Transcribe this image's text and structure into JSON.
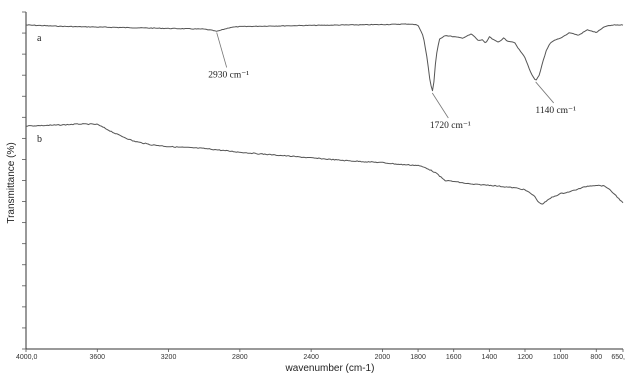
{
  "chart_data": {
    "type": "line",
    "title": "",
    "xlabel": "wavenumber (cm-1)",
    "ylabel": "Transmittance (%)",
    "xlim": [
      4000,
      650
    ],
    "x_reversed": true,
    "grid": false,
    "x_ticks": [
      {
        "value": 4000,
        "label": "4000,0"
      },
      {
        "value": 3600,
        "label": "3600"
      },
      {
        "value": 3200,
        "label": "3200"
      },
      {
        "value": 2800,
        "label": "2800"
      },
      {
        "value": 2400,
        "label": "2400"
      },
      {
        "value": 2000,
        "label": "2000"
      },
      {
        "value": 1800,
        "label": "1800"
      },
      {
        "value": 1600,
        "label": "1600"
      },
      {
        "value": 1400,
        "label": "1400"
      },
      {
        "value": 1200,
        "label": "1200"
      },
      {
        "value": 1000,
        "label": "1000"
      },
      {
        "value": 800,
        "label": "800"
      },
      {
        "value": 650,
        "label": "650,"
      }
    ],
    "series": [
      {
        "name": "a",
        "x": [
          4000,
          3800,
          3600,
          3400,
          3200,
          3000,
          2950,
          2930,
          2900,
          2850,
          2800,
          2600,
          2400,
          2200,
          2000,
          1850,
          1800,
          1770,
          1750,
          1735,
          1720,
          1710,
          1700,
          1680,
          1650,
          1600,
          1550,
          1500,
          1460,
          1440,
          1420,
          1400,
          1380,
          1350,
          1320,
          1300,
          1260,
          1240,
          1200,
          1180,
          1160,
          1140,
          1120,
          1100,
          1080,
          1060,
          1040,
          1000,
          950,
          900,
          850,
          800,
          750,
          700,
          650
        ],
        "y": [
          98.5,
          97.5,
          97.0,
          96.5,
          96.0,
          95.5,
          94.5,
          93.8,
          95.0,
          96.8,
          97.3,
          97.8,
          98.2,
          98.5,
          98.8,
          99.2,
          98.5,
          90.0,
          75.0,
          60.0,
          50.0,
          58.0,
          75.0,
          88.0,
          91.0,
          90.0,
          89.0,
          92.0,
          87.0,
          88.0,
          85.0,
          90.0,
          88.0,
          86.0,
          89.0,
          87.0,
          86.0,
          82.0,
          75.0,
          68.0,
          62.0,
          58.0,
          62.0,
          72.0,
          80.0,
          85.0,
          87.0,
          89.0,
          93.0,
          91.0,
          95.0,
          93.0,
          97.5,
          98.5,
          98.5
        ]
      },
      {
        "name": "b",
        "x": [
          4000,
          3900,
          3800,
          3700,
          3600,
          3500,
          3400,
          3300,
          3200,
          3000,
          2800,
          2600,
          2400,
          2200,
          2000,
          1900,
          1800,
          1750,
          1700,
          1650,
          1600,
          1500,
          1400,
          1300,
          1250,
          1200,
          1150,
          1120,
          1100,
          1080,
          1050,
          1000,
          950,
          900,
          850,
          800,
          750,
          700,
          650
        ],
        "y": [
          66.0,
          66.2,
          66.5,
          67.0,
          66.8,
          62.0,
          58.0,
          56.0,
          55.0,
          54.0,
          52.0,
          50.5,
          49.0,
          47.5,
          46.5,
          45.5,
          45.0,
          43.5,
          41.0,
          37.0,
          36.5,
          35.0,
          34.5,
          33.5,
          33.0,
          32.0,
          29.0,
          25.0,
          24.5,
          26.0,
          28.0,
          30.0,
          31.0,
          32.5,
          34.0,
          34.5,
          34.0,
          30.0,
          25.0
        ]
      }
    ],
    "annotations": [
      {
        "series": "a",
        "x": 2930,
        "text": "2930 cm⁻¹"
      },
      {
        "series": "a",
        "x": 1720,
        "text": "1720 cm⁻¹"
      },
      {
        "series": "a",
        "x": 1140,
        "text": "1140 cm⁻¹"
      }
    ]
  }
}
